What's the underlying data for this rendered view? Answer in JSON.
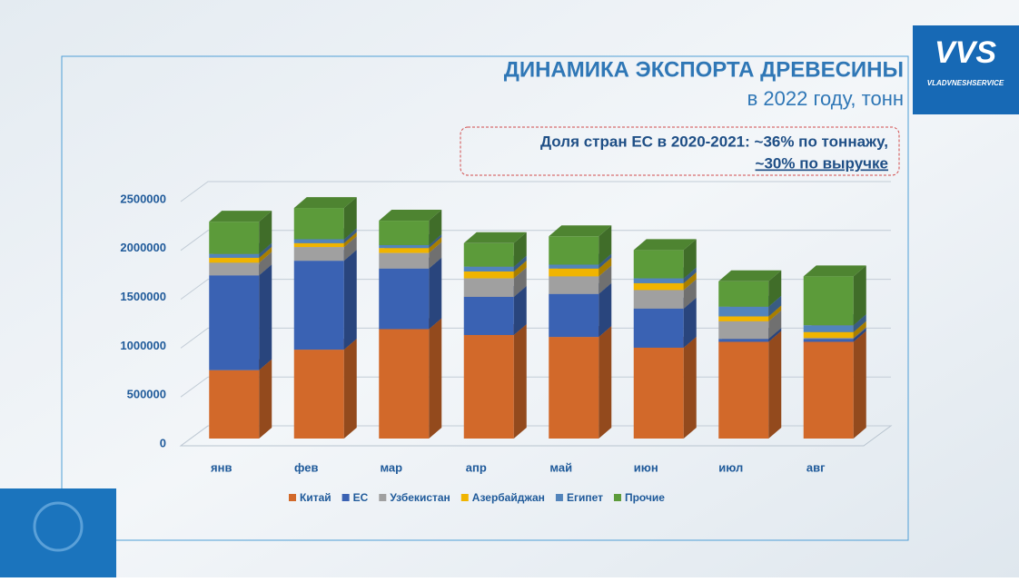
{
  "logo": {
    "mark": "VVS",
    "name": "VLADVNESHSERVICE"
  },
  "chart_data": {
    "type": "bar3d_stacked",
    "title": "ДИНАМИКА ЭКСПОРТА ДРЕВЕСИНЫ",
    "subtitle": "в 2022 году, тонн",
    "annotation": [
      "Доля стран ЕС в 2020-2021: ~36% по тоннажу,",
      "~30% по выручке"
    ],
    "categories": [
      "янв",
      "фев",
      "мар",
      "апр",
      "май",
      "июн",
      "июл",
      "авг"
    ],
    "series": [
      {
        "name": "Китай",
        "color": "#d2692a",
        "values": [
          700000,
          910000,
          1120000,
          1060000,
          1040000,
          930000,
          990000,
          990000
        ]
      },
      {
        "name": "ЕС",
        "color": "#3a62b3",
        "values": [
          970000,
          910000,
          620000,
          390000,
          440000,
          400000,
          30000,
          30000
        ]
      },
      {
        "name": "Узбекистан",
        "color": "#a0a0a0",
        "values": [
          130000,
          140000,
          160000,
          190000,
          180000,
          190000,
          180000,
          10000
        ]
      },
      {
        "name": "Азербайджан",
        "color": "#f0b400",
        "values": [
          50000,
          40000,
          50000,
          70000,
          80000,
          70000,
          50000,
          60000
        ]
      },
      {
        "name": "Египет",
        "color": "#5284bb",
        "values": [
          40000,
          40000,
          30000,
          50000,
          40000,
          50000,
          100000,
          70000
        ]
      },
      {
        "name": "Прочие",
        "color": "#5c9b3a",
        "values": [
          330000,
          320000,
          250000,
          240000,
          290000,
          290000,
          260000,
          500000
        ]
      }
    ],
    "ylim": [
      0,
      2500000
    ],
    "yticks": [
      0,
      500000,
      1000000,
      1500000,
      2000000,
      2500000
    ],
    "grid": true
  }
}
